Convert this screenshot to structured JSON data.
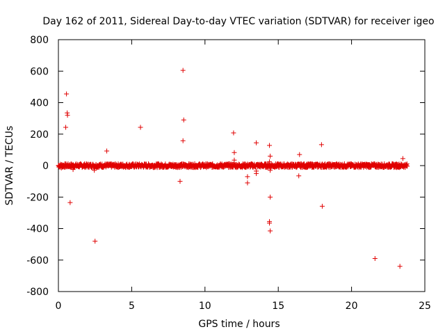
{
  "chart_data": {
    "type": "scatter",
    "title": "Day 162 of 2011, Sidereal Day-to-day VTEC variation (SDTVAR) for receiver igeo",
    "xlabel": "GPS time / hours",
    "ylabel": "SDTVAR / TECUs",
    "xlim": [
      0,
      25
    ],
    "ylim": [
      -800,
      800
    ],
    "xticks": [
      0,
      5,
      10,
      15,
      20,
      25
    ],
    "yticks": [
      -800,
      -600,
      -400,
      -200,
      0,
      200,
      400,
      600,
      800
    ],
    "grid": false,
    "marker": "+",
    "series": [
      {
        "name": "SDTVAR",
        "color": "#e00000",
        "band": {
          "x_start": 0,
          "x_end": 23.8,
          "step": 0.02,
          "y_range": [
            -12,
            12
          ]
        },
        "points": [
          [
            0.55,
            455
          ],
          [
            0.6,
            335
          ],
          [
            0.62,
            320
          ],
          [
            0.5,
            243
          ],
          [
            0.8,
            -235
          ],
          [
            2.5,
            -480
          ],
          [
            2.45,
            -30
          ],
          [
            0.2,
            -15
          ],
          [
            1.0,
            -25
          ],
          [
            3.3,
            93
          ],
          [
            5.6,
            243
          ],
          [
            8.5,
            605
          ],
          [
            8.55,
            290
          ],
          [
            8.5,
            158
          ],
          [
            8.3,
            -100
          ],
          [
            9.0,
            -10
          ],
          [
            11.95,
            208
          ],
          [
            12.0,
            83
          ],
          [
            12.0,
            35
          ],
          [
            13.5,
            145
          ],
          [
            13.5,
            -35
          ],
          [
            13.5,
            -50
          ],
          [
            12.9,
            -70
          ],
          [
            12.9,
            -110
          ],
          [
            14.4,
            128
          ],
          [
            14.45,
            60
          ],
          [
            14.4,
            25
          ],
          [
            14.45,
            -30
          ],
          [
            14.45,
            -200
          ],
          [
            14.4,
            -355
          ],
          [
            14.4,
            -365
          ],
          [
            14.45,
            -415
          ],
          [
            16.45,
            70
          ],
          [
            16.4,
            -65
          ],
          [
            17.95,
            133
          ],
          [
            18.0,
            -258
          ],
          [
            21.6,
            -590
          ],
          [
            23.3,
            -640
          ],
          [
            23.5,
            45
          ],
          [
            20.6,
            -10
          ],
          [
            22.6,
            8
          ],
          [
            6.8,
            12
          ],
          [
            10.2,
            -6
          ]
        ]
      }
    ]
  }
}
